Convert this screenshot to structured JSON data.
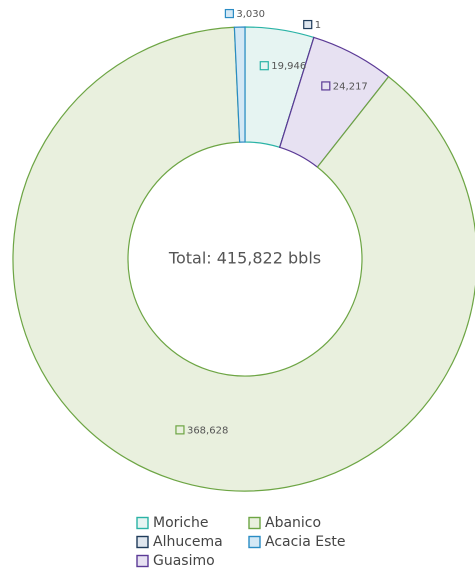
{
  "chart_data": {
    "type": "donut",
    "center_label": "Total: 415,822 bbls",
    "categories": [
      "Moriche",
      "Alhucema",
      "Guasimo",
      "Abanico",
      "Acacia Este"
    ],
    "values": [
      19946,
      1,
      24217,
      368628,
      3030
    ],
    "value_labels": [
      "19,946",
      "1",
      "24,217",
      "368,628",
      "3,030"
    ],
    "colors": [
      "#2ab3a6",
      "#1f3b5a",
      "#5b3a96",
      "#6da544",
      "#2a8cc4"
    ],
    "fills": [
      "#e6f4f2",
      "#dfe6ee",
      "#e7e1f2",
      "#e9f0de",
      "#d3e8f5"
    ],
    "legend": "bottom"
  }
}
